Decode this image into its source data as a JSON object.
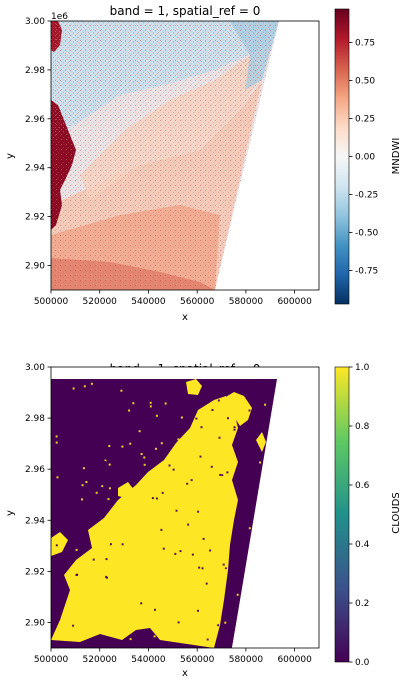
{
  "chart_data": [
    {
      "type": "heatmap",
      "title": "band = 1, spatial_ref = 0",
      "xlabel": "x",
      "ylabel": "y",
      "offset_text": "1e6",
      "xlim": [
        500000,
        610000
      ],
      "ylim": [
        2890000,
        3000000
      ],
      "x_ticks": [
        500000,
        520000,
        540000,
        560000,
        580000,
        600000
      ],
      "x_tick_labels": [
        "500000",
        "520000",
        "540000",
        "560000",
        "580000",
        "600000"
      ],
      "y_ticks": [
        2900000,
        2920000,
        2940000,
        2960000,
        2980000,
        3000000
      ],
      "y_tick_labels": [
        "2.90",
        "2.92",
        "2.94",
        "2.96",
        "2.98",
        "3.00"
      ],
      "colorbar": {
        "label": "MNDWI",
        "colormap": "RdBu_r",
        "range": [
          -0.97,
          0.97
        ],
        "ticks": [
          -0.75,
          -0.5,
          -0.25,
          0.0,
          0.25,
          0.5,
          0.75
        ],
        "tick_labels": [
          "-0.75",
          "-0.50",
          "-0.25",
          "0.00",
          "0.25",
          "0.50",
          "0.75"
        ]
      },
      "colors": [
        "#053061",
        "#2166ac",
        "#4393c3",
        "#92c5de",
        "#d1e5f0",
        "#f7f7f7",
        "#fddbc7",
        "#f4a582",
        "#d6604d",
        "#b2182b",
        "#67001f"
      ]
    },
    {
      "type": "heatmap",
      "title": "band = 1, spatial_ref = 0",
      "xlabel": "x",
      "ylabel": "y",
      "offset_text": "1e6",
      "xlim": [
        500000,
        610000
      ],
      "ylim": [
        2890000,
        3000000
      ],
      "x_ticks": [
        500000,
        520000,
        540000,
        560000,
        580000,
        600000
      ],
      "x_tick_labels": [
        "500000",
        "520000",
        "540000",
        "560000",
        "580000",
        "600000"
      ],
      "y_ticks": [
        2900000,
        2920000,
        2940000,
        2960000,
        2980000,
        3000000
      ],
      "y_tick_labels": [
        "2.90",
        "2.92",
        "2.94",
        "2.96",
        "2.98",
        "3.00"
      ],
      "colorbar": {
        "label": "CLOUDS",
        "colormap": "viridis",
        "range": [
          0.0,
          1.0
        ],
        "ticks": [
          0.0,
          0.2,
          0.4,
          0.6,
          0.8,
          1.0
        ],
        "tick_labels": [
          "0.0",
          "0.2",
          "0.4",
          "0.6",
          "0.8",
          "1.0"
        ]
      },
      "colors": [
        "#440154",
        "#3b528b",
        "#21918c",
        "#5ec962",
        "#fde725"
      ]
    }
  ]
}
